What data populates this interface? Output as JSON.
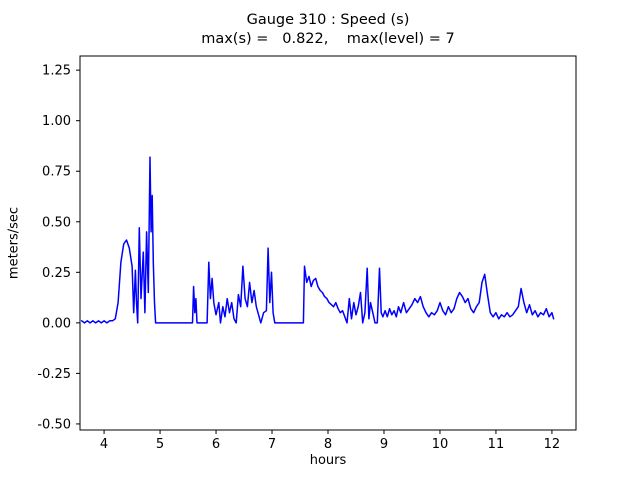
{
  "figure": {
    "title": "Gauge 310 : Speed (s)",
    "subtitle": "max(s) =   0.822,    max(level) = 7",
    "xlabel": "hours",
    "ylabel": "meters/sec"
  },
  "chart_data": {
    "type": "line",
    "title": "Gauge 310 : Speed (s)",
    "subtitle": "max(s) =   0.822,    max(level) = 7",
    "xlabel": "hours",
    "ylabel": "meters/sec",
    "max_s": 0.822,
    "max_level": 7,
    "xlim": [
      3.57,
      12.43
    ],
    "ylim": [
      -0.53,
      1.32
    ],
    "x_ticks": [
      4,
      5,
      6,
      7,
      8,
      9,
      10,
      11,
      12
    ],
    "y_ticks": [
      -0.5,
      -0.25,
      0.0,
      0.25,
      0.5,
      0.75,
      1.0,
      1.25
    ],
    "grid": false,
    "legend": "none",
    "series": [
      {
        "name": "speed",
        "color": "#0000ff",
        "linewidth": 1.5,
        "points": [
          [
            3.6,
            0.01
          ],
          [
            3.65,
            0.0
          ],
          [
            3.7,
            0.01
          ],
          [
            3.75,
            0.0
          ],
          [
            3.8,
            0.01
          ],
          [
            3.85,
            0.0
          ],
          [
            3.9,
            0.01
          ],
          [
            3.95,
            0.0
          ],
          [
            4.0,
            0.01
          ],
          [
            4.05,
            0.0
          ],
          [
            4.1,
            0.01
          ],
          [
            4.15,
            0.01
          ],
          [
            4.2,
            0.02
          ],
          [
            4.25,
            0.1
          ],
          [
            4.3,
            0.3
          ],
          [
            4.35,
            0.39
          ],
          [
            4.4,
            0.41
          ],
          [
            4.45,
            0.37
          ],
          [
            4.5,
            0.28
          ],
          [
            4.53,
            0.05
          ],
          [
            4.56,
            0.26
          ],
          [
            4.58,
            0.1
          ],
          [
            4.6,
            0.0
          ],
          [
            4.63,
            0.47
          ],
          [
            4.66,
            0.12
          ],
          [
            4.7,
            0.35
          ],
          [
            4.73,
            0.05
          ],
          [
            4.76,
            0.45
          ],
          [
            4.79,
            0.15
          ],
          [
            4.82,
            0.82
          ],
          [
            4.84,
            0.45
          ],
          [
            4.86,
            0.63
          ],
          [
            4.88,
            0.3
          ],
          [
            4.9,
            0.1
          ],
          [
            4.92,
            0.0
          ],
          [
            5.0,
            0.0
          ],
          [
            5.1,
            0.0
          ],
          [
            5.2,
            0.0
          ],
          [
            5.3,
            0.0
          ],
          [
            5.4,
            0.0
          ],
          [
            5.5,
            0.0
          ],
          [
            5.58,
            0.0
          ],
          [
            5.6,
            0.18
          ],
          [
            5.62,
            0.05
          ],
          [
            5.64,
            0.12
          ],
          [
            5.66,
            0.0
          ],
          [
            5.7,
            0.0
          ],
          [
            5.8,
            0.0
          ],
          [
            5.84,
            0.0
          ],
          [
            5.87,
            0.3
          ],
          [
            5.9,
            0.12
          ],
          [
            5.93,
            0.22
          ],
          [
            5.96,
            0.1
          ],
          [
            6.0,
            0.04
          ],
          [
            6.05,
            0.1
          ],
          [
            6.08,
            0.0
          ],
          [
            6.12,
            0.08
          ],
          [
            6.16,
            0.03
          ],
          [
            6.2,
            0.12
          ],
          [
            6.24,
            0.05
          ],
          [
            6.28,
            0.1
          ],
          [
            6.32,
            0.02
          ],
          [
            6.36,
            0.0
          ],
          [
            6.4,
            0.14
          ],
          [
            6.44,
            0.08
          ],
          [
            6.48,
            0.28
          ],
          [
            6.52,
            0.12
          ],
          [
            6.56,
            0.08
          ],
          [
            6.6,
            0.2
          ],
          [
            6.64,
            0.1
          ],
          [
            6.68,
            0.16
          ],
          [
            6.72,
            0.08
          ],
          [
            6.76,
            0.04
          ],
          [
            6.8,
            0.0
          ],
          [
            6.85,
            0.05
          ],
          [
            6.9,
            0.06
          ],
          [
            6.93,
            0.37
          ],
          [
            6.96,
            0.1
          ],
          [
            6.99,
            0.25
          ],
          [
            7.02,
            0.05
          ],
          [
            7.05,
            0.0
          ],
          [
            7.1,
            0.0
          ],
          [
            7.2,
            0.0
          ],
          [
            7.3,
            0.0
          ],
          [
            7.4,
            0.0
          ],
          [
            7.5,
            0.0
          ],
          [
            7.56,
            0.0
          ],
          [
            7.58,
            0.28
          ],
          [
            7.62,
            0.2
          ],
          [
            7.66,
            0.23
          ],
          [
            7.7,
            0.18
          ],
          [
            7.74,
            0.21
          ],
          [
            7.78,
            0.22
          ],
          [
            7.82,
            0.18
          ],
          [
            7.86,
            0.16
          ],
          [
            7.9,
            0.15
          ],
          [
            7.94,
            0.13
          ],
          [
            7.98,
            0.12
          ],
          [
            8.02,
            0.1
          ],
          [
            8.06,
            0.09
          ],
          [
            8.1,
            0.08
          ],
          [
            8.14,
            0.1
          ],
          [
            8.18,
            0.07
          ],
          [
            8.22,
            0.05
          ],
          [
            8.26,
            0.06
          ],
          [
            8.3,
            0.03
          ],
          [
            8.34,
            0.0
          ],
          [
            8.38,
            0.12
          ],
          [
            8.42,
            0.02
          ],
          [
            8.46,
            0.1
          ],
          [
            8.5,
            0.04
          ],
          [
            8.54,
            0.08
          ],
          [
            8.58,
            0.15
          ],
          [
            8.62,
            0.0
          ],
          [
            8.66,
            0.05
          ],
          [
            8.7,
            0.27
          ],
          [
            8.73,
            0.02
          ],
          [
            8.76,
            0.1
          ],
          [
            8.8,
            0.05
          ],
          [
            8.84,
            0.0
          ],
          [
            8.88,
            0.0
          ],
          [
            8.92,
            0.27
          ],
          [
            8.95,
            0.05
          ],
          [
            8.98,
            0.03
          ],
          [
            9.02,
            0.06
          ],
          [
            9.06,
            0.03
          ],
          [
            9.1,
            0.07
          ],
          [
            9.14,
            0.04
          ],
          [
            9.18,
            0.06
          ],
          [
            9.22,
            0.03
          ],
          [
            9.26,
            0.08
          ],
          [
            9.3,
            0.05
          ],
          [
            9.35,
            0.1
          ],
          [
            9.4,
            0.05
          ],
          [
            9.45,
            0.07
          ],
          [
            9.5,
            0.09
          ],
          [
            9.55,
            0.12
          ],
          [
            9.6,
            0.1
          ],
          [
            9.65,
            0.13
          ],
          [
            9.7,
            0.08
          ],
          [
            9.75,
            0.05
          ],
          [
            9.8,
            0.03
          ],
          [
            9.85,
            0.05
          ],
          [
            9.9,
            0.04
          ],
          [
            9.95,
            0.06
          ],
          [
            10.0,
            0.1
          ],
          [
            10.05,
            0.06
          ],
          [
            10.1,
            0.04
          ],
          [
            10.15,
            0.08
          ],
          [
            10.2,
            0.05
          ],
          [
            10.25,
            0.07
          ],
          [
            10.3,
            0.12
          ],
          [
            10.35,
            0.15
          ],
          [
            10.4,
            0.13
          ],
          [
            10.45,
            0.1
          ],
          [
            10.5,
            0.12
          ],
          [
            10.55,
            0.07
          ],
          [
            10.6,
            0.05
          ],
          [
            10.65,
            0.08
          ],
          [
            10.7,
            0.1
          ],
          [
            10.75,
            0.2
          ],
          [
            10.8,
            0.24
          ],
          [
            10.85,
            0.14
          ],
          [
            10.9,
            0.05
          ],
          [
            10.95,
            0.03
          ],
          [
            11.0,
            0.05
          ],
          [
            11.05,
            0.02
          ],
          [
            11.1,
            0.04
          ],
          [
            11.15,
            0.03
          ],
          [
            11.2,
            0.05
          ],
          [
            11.25,
            0.03
          ],
          [
            11.3,
            0.04
          ],
          [
            11.35,
            0.06
          ],
          [
            11.4,
            0.08
          ],
          [
            11.45,
            0.17
          ],
          [
            11.5,
            0.1
          ],
          [
            11.55,
            0.05
          ],
          [
            11.6,
            0.09
          ],
          [
            11.65,
            0.04
          ],
          [
            11.7,
            0.06
          ],
          [
            11.75,
            0.03
          ],
          [
            11.8,
            0.05
          ],
          [
            11.85,
            0.04
          ],
          [
            11.9,
            0.07
          ],
          [
            11.95,
            0.03
          ],
          [
            12.0,
            0.05
          ],
          [
            12.03,
            0.02
          ]
        ]
      }
    ]
  }
}
